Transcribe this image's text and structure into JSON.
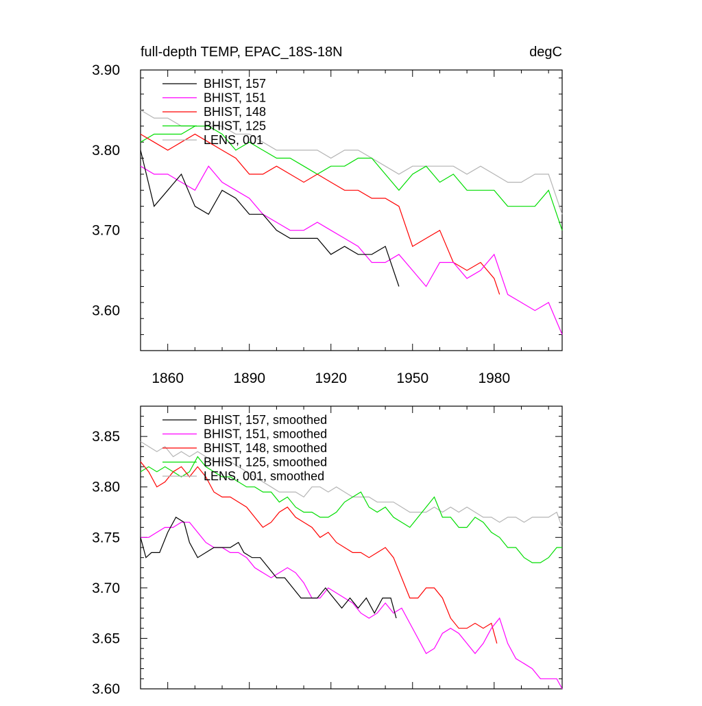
{
  "chart_data": [
    {
      "type": "line",
      "title": "full-depth TEMP, EPAC_18S-18N",
      "units": "degC",
      "xlim": [
        1850,
        2005
      ],
      "ylim": [
        3.55,
        3.9
      ],
      "xticks": [
        1860,
        1890,
        1920,
        1950,
        1980
      ],
      "xtick_labels": [
        "1860",
        "1890",
        "1920",
        "1950",
        "1980"
      ],
      "yticks": [
        3.6,
        3.7,
        3.8,
        3.9
      ],
      "ytick_labels": [
        "3.60",
        "3.70",
        "3.80",
        "3.90"
      ],
      "legend_position": "top-left",
      "series": [
        {
          "name": "BHIST, 157",
          "color": "#000000",
          "x": [
            1850,
            1855,
            1860,
            1865,
            1870,
            1875,
            1880,
            1885,
            1890,
            1895,
            1900,
            1905,
            1910,
            1915,
            1920,
            1925,
            1930,
            1935,
            1940,
            1945
          ],
          "values": [
            3.8,
            3.73,
            3.75,
            3.77,
            3.73,
            3.72,
            3.75,
            3.74,
            3.72,
            3.72,
            3.7,
            3.69,
            3.69,
            3.69,
            3.67,
            3.68,
            3.67,
            3.67,
            3.68,
            3.63
          ]
        },
        {
          "name": "BHIST, 151",
          "color": "#ff00ff",
          "x": [
            1850,
            1855,
            1860,
            1865,
            1870,
            1875,
            1880,
            1885,
            1890,
            1895,
            1900,
            1905,
            1910,
            1915,
            1920,
            1925,
            1930,
            1935,
            1940,
            1945,
            1950,
            1955,
            1960,
            1965,
            1970,
            1975,
            1980,
            1985,
            1990,
            1995,
            2000,
            2005
          ],
          "values": [
            3.78,
            3.77,
            3.77,
            3.76,
            3.75,
            3.78,
            3.76,
            3.75,
            3.74,
            3.72,
            3.71,
            3.7,
            3.7,
            3.71,
            3.7,
            3.69,
            3.68,
            3.66,
            3.66,
            3.67,
            3.65,
            3.63,
            3.66,
            3.66,
            3.64,
            3.65,
            3.67,
            3.62,
            3.61,
            3.6,
            3.61,
            3.57
          ]
        },
        {
          "name": "BHIST, 148",
          "color": "#ff0000",
          "x": [
            1850,
            1855,
            1860,
            1865,
            1870,
            1875,
            1880,
            1885,
            1890,
            1895,
            1900,
            1905,
            1910,
            1915,
            1920,
            1925,
            1930,
            1935,
            1940,
            1945,
            1950,
            1955,
            1960,
            1965,
            1970,
            1975,
            1980,
            1982
          ],
          "values": [
            3.82,
            3.81,
            3.8,
            3.81,
            3.82,
            3.81,
            3.8,
            3.79,
            3.77,
            3.77,
            3.78,
            3.77,
            3.76,
            3.77,
            3.76,
            3.75,
            3.75,
            3.74,
            3.74,
            3.73,
            3.68,
            3.69,
            3.7,
            3.66,
            3.65,
            3.66,
            3.64,
            3.62
          ]
        },
        {
          "name": "BHIST, 125",
          "color": "#00dd00",
          "x": [
            1850,
            1855,
            1860,
            1865,
            1870,
            1875,
            1880,
            1885,
            1890,
            1895,
            1900,
            1905,
            1910,
            1915,
            1920,
            1925,
            1930,
            1935,
            1940,
            1945,
            1950,
            1955,
            1960,
            1965,
            1970,
            1975,
            1980,
            1985,
            1990,
            1995,
            2000,
            2005
          ],
          "values": [
            3.81,
            3.82,
            3.82,
            3.82,
            3.83,
            3.83,
            3.82,
            3.8,
            3.81,
            3.8,
            3.79,
            3.79,
            3.78,
            3.77,
            3.78,
            3.78,
            3.79,
            3.79,
            3.77,
            3.75,
            3.77,
            3.78,
            3.76,
            3.77,
            3.75,
            3.75,
            3.75,
            3.73,
            3.73,
            3.73,
            3.75,
            3.7
          ]
        },
        {
          "name": "LENS, 001",
          "color": "#b4b4b4",
          "x": [
            1850,
            1855,
            1860,
            1865,
            1870,
            1875,
            1880,
            1885,
            1890,
            1895,
            1900,
            1905,
            1910,
            1915,
            1920,
            1925,
            1930,
            1935,
            1940,
            1945,
            1950,
            1955,
            1960,
            1965,
            1970,
            1975,
            1980,
            1985,
            1990,
            1995,
            2000,
            2005
          ],
          "values": [
            3.85,
            3.84,
            3.84,
            3.83,
            3.83,
            3.83,
            3.83,
            3.82,
            3.82,
            3.81,
            3.8,
            3.8,
            3.8,
            3.8,
            3.79,
            3.8,
            3.8,
            3.79,
            3.78,
            3.77,
            3.78,
            3.78,
            3.78,
            3.78,
            3.77,
            3.78,
            3.77,
            3.76,
            3.76,
            3.77,
            3.77,
            3.72
          ]
        }
      ]
    },
    {
      "type": "line",
      "xlim": [
        1850,
        2005
      ],
      "ylim": [
        3.6,
        3.88
      ],
      "xticks": [
        1860,
        1890,
        1920,
        1950,
        1980
      ],
      "yticks": [
        3.6,
        3.65,
        3.7,
        3.75,
        3.8,
        3.85
      ],
      "ytick_labels": [
        "3.60",
        "3.65",
        "3.70",
        "3.75",
        "3.80",
        "3.85"
      ],
      "legend_position": "top-left",
      "series": [
        {
          "name": "BHIST, 157, smoothed",
          "color": "#000000",
          "x": [
            1850,
            1852,
            1854,
            1857,
            1860,
            1863,
            1866,
            1868,
            1871,
            1874,
            1877,
            1880,
            1883,
            1886,
            1888,
            1891,
            1894,
            1897,
            1900,
            1903,
            1906,
            1909,
            1912,
            1915,
            1918,
            1921,
            1924,
            1927,
            1930,
            1933,
            1936,
            1939,
            1942,
            1944
          ],
          "values": [
            3.75,
            3.73,
            3.735,
            3.735,
            3.755,
            3.77,
            3.765,
            3.745,
            3.73,
            3.735,
            3.74,
            3.74,
            3.74,
            3.745,
            3.735,
            3.73,
            3.73,
            3.72,
            3.71,
            3.71,
            3.7,
            3.69,
            3.69,
            3.69,
            3.7,
            3.69,
            3.68,
            3.69,
            3.68,
            3.69,
            3.675,
            3.69,
            3.69,
            3.67
          ]
        },
        {
          "name": "BHIST, 151, smoothed",
          "color": "#ff00ff",
          "x": [
            1850,
            1853,
            1856,
            1859,
            1862,
            1865,
            1868,
            1871,
            1874,
            1877,
            1880,
            1883,
            1886,
            1889,
            1892,
            1895,
            1898,
            1901,
            1904,
            1907,
            1910,
            1913,
            1916,
            1919,
            1922,
            1925,
            1928,
            1931,
            1934,
            1937,
            1940,
            1943,
            1946,
            1949,
            1952,
            1955,
            1958,
            1961,
            1964,
            1967,
            1970,
            1973,
            1976,
            1979,
            1982,
            1985,
            1988,
            1991,
            1994,
            1997,
            2000,
            2003,
            2005
          ],
          "values": [
            3.75,
            3.75,
            3.755,
            3.76,
            3.76,
            3.765,
            3.765,
            3.755,
            3.745,
            3.74,
            3.74,
            3.735,
            3.735,
            3.73,
            3.72,
            3.715,
            3.71,
            3.715,
            3.72,
            3.715,
            3.705,
            3.69,
            3.69,
            3.7,
            3.695,
            3.69,
            3.685,
            3.675,
            3.67,
            3.675,
            3.685,
            3.675,
            3.68,
            3.665,
            3.65,
            3.635,
            3.64,
            3.655,
            3.66,
            3.655,
            3.645,
            3.635,
            3.645,
            3.66,
            3.67,
            3.645,
            3.63,
            3.625,
            3.62,
            3.61,
            3.61,
            3.61,
            3.6
          ]
        },
        {
          "name": "BHIST, 148, smoothed",
          "color": "#ff0000",
          "x": [
            1850,
            1853,
            1856,
            1859,
            1862,
            1865,
            1868,
            1871,
            1874,
            1877,
            1880,
            1883,
            1886,
            1889,
            1892,
            1895,
            1898,
            1901,
            1904,
            1907,
            1910,
            1913,
            1916,
            1919,
            1922,
            1925,
            1928,
            1931,
            1934,
            1937,
            1940,
            1943,
            1946,
            1949,
            1952,
            1955,
            1958,
            1961,
            1964,
            1967,
            1970,
            1973,
            1976,
            1979,
            1981
          ],
          "values": [
            3.825,
            3.815,
            3.8,
            3.805,
            3.815,
            3.82,
            3.81,
            3.82,
            3.81,
            3.795,
            3.79,
            3.79,
            3.785,
            3.78,
            3.77,
            3.76,
            3.765,
            3.775,
            3.78,
            3.77,
            3.765,
            3.76,
            3.75,
            3.755,
            3.745,
            3.74,
            3.735,
            3.735,
            3.73,
            3.735,
            3.74,
            3.73,
            3.71,
            3.69,
            3.69,
            3.7,
            3.7,
            3.69,
            3.67,
            3.66,
            3.66,
            3.665,
            3.66,
            3.665,
            3.645
          ]
        },
        {
          "name": "BHIST, 125, smoothed",
          "color": "#00dd00",
          "x": [
            1850,
            1853,
            1856,
            1859,
            1862,
            1865,
            1868,
            1871,
            1874,
            1877,
            1880,
            1883,
            1886,
            1889,
            1892,
            1895,
            1898,
            1901,
            1904,
            1907,
            1910,
            1913,
            1916,
            1919,
            1922,
            1925,
            1928,
            1931,
            1934,
            1937,
            1940,
            1943,
            1946,
            1949,
            1952,
            1955,
            1958,
            1961,
            1964,
            1967,
            1970,
            1973,
            1976,
            1979,
            1982,
            1985,
            1988,
            1991,
            1994,
            1997,
            2000,
            2003,
            2005
          ],
          "values": [
            3.815,
            3.82,
            3.815,
            3.82,
            3.815,
            3.81,
            3.815,
            3.83,
            3.82,
            3.815,
            3.81,
            3.81,
            3.805,
            3.8,
            3.8,
            3.795,
            3.795,
            3.785,
            3.79,
            3.78,
            3.775,
            3.775,
            3.77,
            3.77,
            3.775,
            3.785,
            3.79,
            3.795,
            3.78,
            3.775,
            3.78,
            3.77,
            3.765,
            3.76,
            3.77,
            3.78,
            3.79,
            3.77,
            3.77,
            3.76,
            3.76,
            3.77,
            3.765,
            3.755,
            3.75,
            3.74,
            3.74,
            3.73,
            3.725,
            3.725,
            3.73,
            3.74,
            3.74
          ]
        },
        {
          "name": "LENS, 001, smoothed",
          "color": "#b4b4b4",
          "x": [
            1850,
            1853,
            1856,
            1859,
            1862,
            1865,
            1868,
            1871,
            1874,
            1877,
            1880,
            1883,
            1886,
            1889,
            1892,
            1895,
            1898,
            1901,
            1904,
            1907,
            1910,
            1913,
            1916,
            1919,
            1922,
            1925,
            1928,
            1931,
            1934,
            1937,
            1940,
            1943,
            1946,
            1949,
            1952,
            1955,
            1958,
            1961,
            1964,
            1967,
            1970,
            1973,
            1976,
            1979,
            1982,
            1985,
            1988,
            1991,
            1994,
            1997,
            2000,
            2003,
            2005
          ],
          "values": [
            3.845,
            3.84,
            3.835,
            3.84,
            3.83,
            3.835,
            3.83,
            3.835,
            3.83,
            3.825,
            3.825,
            3.825,
            3.82,
            3.815,
            3.81,
            3.805,
            3.8,
            3.795,
            3.795,
            3.795,
            3.79,
            3.8,
            3.8,
            3.795,
            3.8,
            3.795,
            3.79,
            3.79,
            3.79,
            3.785,
            3.785,
            3.785,
            3.78,
            3.775,
            3.775,
            3.775,
            3.78,
            3.775,
            3.78,
            3.775,
            3.78,
            3.775,
            3.77,
            3.77,
            3.765,
            3.77,
            3.77,
            3.765,
            3.77,
            3.77,
            3.77,
            3.775,
            3.76
          ]
        }
      ]
    }
  ]
}
